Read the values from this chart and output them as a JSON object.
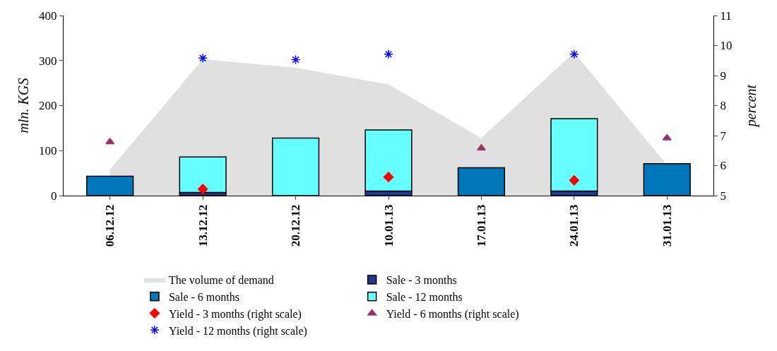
{
  "chart_data": {
    "type": "bar",
    "categories": [
      "06.12.12",
      "13.12.12",
      "20.12.12",
      "10.01.13",
      "17.01.13",
      "24.01.13",
      "31.01.13"
    ],
    "ylabel": "mln. KGS",
    "y2label": "percent",
    "ylim": [
      0,
      400
    ],
    "yticks": [
      0,
      100,
      200,
      300,
      400
    ],
    "y2lim": [
      5,
      11
    ],
    "y2ticks": [
      5,
      6,
      7,
      8,
      9,
      10,
      11
    ],
    "grid": false,
    "legend": "bottom",
    "series": [
      {
        "name": "The volume of demand",
        "type": "area",
        "color": "#e0e0e0",
        "values": [
          58,
          303,
          284,
          247,
          128,
          318,
          68
        ]
      },
      {
        "name": "Sale - 3 months",
        "type": "bar",
        "color": "#1f3a93",
        "values": [
          null,
          7,
          null,
          10,
          null,
          10,
          null
        ]
      },
      {
        "name": "Sale - 6 months",
        "type": "bar",
        "color": "#0077bb",
        "values": [
          43,
          null,
          null,
          null,
          62,
          null,
          71
        ]
      },
      {
        "name": "Sale - 12 months",
        "type": "bar",
        "color": "#66ffff",
        "base": [
          null,
          7,
          0,
          10,
          null,
          10,
          null
        ],
        "values": [
          null,
          79,
          128,
          136,
          null,
          161,
          null
        ]
      },
      {
        "name": "Yield - 3 months (right scale)",
        "type": "scatter",
        "axis": "y2",
        "marker": "diamond",
        "color": "#ff0000",
        "values": [
          null,
          5.22,
          null,
          5.62,
          null,
          5.51,
          null
        ]
      },
      {
        "name": "Yield - 6 months (right scale)",
        "type": "scatter",
        "axis": "y2",
        "marker": "triangle",
        "color": "#993366",
        "values": [
          6.79,
          null,
          null,
          null,
          6.58,
          null,
          6.92
        ]
      },
      {
        "name": "Yield - 12 months (right scale)",
        "type": "scatter",
        "axis": "y2",
        "marker": "cross",
        "color": "#0000ff",
        "values": [
          null,
          9.58,
          9.53,
          9.71,
          null,
          9.71,
          null
        ]
      }
    ]
  }
}
